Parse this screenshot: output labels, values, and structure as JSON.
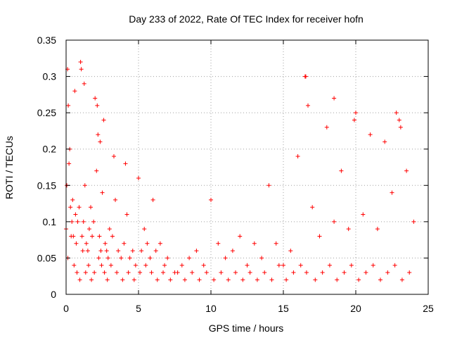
{
  "chart_data": {
    "type": "scatter",
    "title": "Day 233 of 2022, Rate Of TEC Index for receiver hofn",
    "xlabel": "GPS time / hours",
    "ylabel": "ROTI / TECUs",
    "xlim": [
      0,
      25
    ],
    "ylim": [
      0,
      0.35
    ],
    "xticks": [
      0,
      5,
      10,
      15,
      20,
      25
    ],
    "xtick_labels": [
      "0",
      "5",
      "10",
      "15",
      "20",
      "25"
    ],
    "yticks": [
      0,
      0.05,
      0.1,
      0.15,
      0.2,
      0.25,
      0.3,
      0.35
    ],
    "ytick_labels": [
      "0",
      "0.05",
      "0.1",
      "0.15",
      "0.2",
      "0.25",
      "0.3",
      "0.35"
    ],
    "grid": true,
    "marker": "plus",
    "color": "#ff0000",
    "series": [
      {
        "x": [
          0.0,
          0.1,
          0.15,
          0.2,
          0.3,
          0.4,
          0.5,
          0.6,
          0.7,
          0.8,
          0.9,
          1.0,
          1.1,
          1.2,
          1.3,
          1.4,
          1.5,
          1.6,
          1.7,
          1.8,
          1.9,
          2.0,
          2.1,
          2.2,
          2.3,
          2.4,
          2.5,
          2.6,
          2.7,
          2.8,
          2.9,
          3.0,
          3.2,
          3.4,
          3.6,
          3.8,
          4.0,
          4.2,
          4.4,
          4.6,
          4.8,
          5.0,
          5.2,
          5.4,
          5.6,
          5.8,
          6.0,
          6.2,
          6.5,
          6.8,
          7.0,
          7.5,
          8.0,
          8.5,
          9.0,
          9.5,
          10.0,
          10.5,
          11.0,
          11.5,
          12.0,
          12.5,
          13.0,
          13.5,
          14.0,
          14.5,
          15.0,
          15.5,
          16.0,
          16.5,
          16.7,
          17.0,
          17.5,
          18.0,
          18.5,
          19.0,
          19.5,
          20.0,
          20.5,
          21.0,
          21.5,
          22.0,
          22.5,
          23.0,
          23.5,
          24.0,
          0.05,
          0.25,
          0.45,
          0.65,
          1.05,
          1.25,
          2.15,
          2.35,
          3.3,
          4.1,
          16.55,
          18.5,
          19.9,
          22.8,
          23.1,
          0.12,
          0.35,
          0.55,
          0.75,
          0.95,
          1.15,
          1.35,
          1.55,
          1.75,
          1.95,
          2.25,
          2.45,
          2.65,
          2.85,
          3.1,
          3.5,
          3.9,
          4.3,
          4.7,
          5.1,
          5.5,
          5.9,
          6.3,
          6.7,
          7.2,
          7.7,
          8.2,
          8.7,
          9.2,
          9.7,
          10.2,
          10.7,
          11.2,
          11.7,
          12.2,
          12.7,
          13.2,
          13.7,
          14.2,
          14.7,
          15.2,
          15.7,
          16.2,
          16.6,
          17.2,
          17.7,
          18.2,
          18.7,
          19.2,
          19.7,
          20.2,
          20.7,
          21.2,
          21.7,
          22.2,
          22.7,
          23.2,
          23.7
        ],
        "y": [
          0.09,
          0.31,
          0.26,
          0.18,
          0.12,
          0.1,
          0.08,
          0.28,
          0.07,
          0.1,
          0.12,
          0.32,
          0.08,
          0.1,
          0.15,
          0.07,
          0.06,
          0.09,
          0.12,
          0.08,
          0.1,
          0.27,
          0.17,
          0.22,
          0.08,
          0.06,
          0.14,
          0.24,
          0.07,
          0.06,
          0.05,
          0.09,
          0.08,
          0.13,
          0.06,
          0.05,
          0.07,
          0.11,
          0.05,
          0.06,
          0.04,
          0.16,
          0.06,
          0.09,
          0.07,
          0.05,
          0.13,
          0.06,
          0.07,
          0.04,
          0.05,
          0.03,
          0.04,
          0.05,
          0.06,
          0.04,
          0.13,
          0.07,
          0.05,
          0.06,
          0.08,
          0.04,
          0.07,
          0.05,
          0.15,
          0.07,
          0.04,
          0.06,
          0.19,
          0.3,
          0.26,
          0.12,
          0.08,
          0.23,
          0.1,
          0.17,
          0.09,
          0.25,
          0.11,
          0.22,
          0.09,
          0.21,
          0.14,
          0.24,
          0.17,
          0.1,
          0.15,
          0.2,
          0.13,
          0.11,
          0.31,
          0.29,
          0.26,
          0.21,
          0.19,
          0.18,
          0.3,
          0.27,
          0.24,
          0.25,
          0.23,
          0.05,
          0.08,
          0.04,
          0.03,
          0.02,
          0.06,
          0.03,
          0.04,
          0.02,
          0.03,
          0.05,
          0.04,
          0.03,
          0.02,
          0.04,
          0.03,
          0.02,
          0.03,
          0.02,
          0.03,
          0.04,
          0.03,
          0.02,
          0.03,
          0.02,
          0.03,
          0.02,
          0.03,
          0.02,
          0.03,
          0.02,
          0.03,
          0.02,
          0.03,
          0.02,
          0.03,
          0.02,
          0.03,
          0.02,
          0.04,
          0.02,
          0.03,
          0.04,
          0.03,
          0.02,
          0.03,
          0.04,
          0.02,
          0.03,
          0.04,
          0.02,
          0.03,
          0.04,
          0.02,
          0.03,
          0.04,
          0.02,
          0.03
        ]
      }
    ]
  }
}
